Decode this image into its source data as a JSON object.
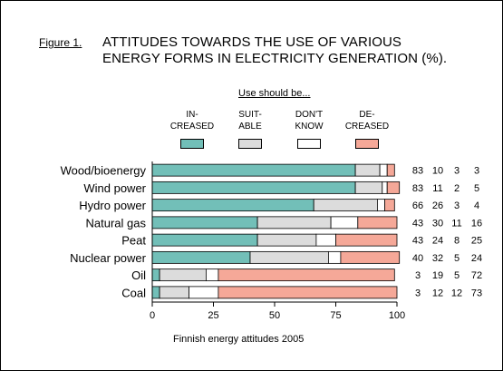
{
  "figure": {
    "label": "Figure 1.",
    "title_line1": "ATTITUDES TOWARDS THE USE OF VARIOUS",
    "title_line2": "ENERGY FORMS IN ELECTRICITY GENERATION (%)."
  },
  "legend": {
    "heading": "Use should be...",
    "items": [
      {
        "line1": "IN-",
        "line2": "CREASED",
        "color": "#72bfb8"
      },
      {
        "line1": "SUIT-",
        "line2": "ABLE",
        "color": "#dcdcdc"
      },
      {
        "line1": "DON'T",
        "line2": "KNOW",
        "color": "#ffffff"
      },
      {
        "line1": "DE-",
        "line2": "CREASED",
        "color": "#f5a898"
      }
    ]
  },
  "caption": "Finnish energy attitudes 2005",
  "chart_data": {
    "type": "bar",
    "orientation": "horizontal",
    "stacked": true,
    "categories": [
      "Wood/bioenergy",
      "Wind power",
      "Hydro power",
      "Natural gas",
      "Peat",
      "Nuclear power",
      "Oil",
      "Coal"
    ],
    "series": [
      {
        "name": "IN- CREASED",
        "color": "#72bfb8",
        "values": [
          83,
          83,
          66,
          43,
          43,
          40,
          3,
          3
        ]
      },
      {
        "name": "SUIT- ABLE",
        "color": "#dcdcdc",
        "values": [
          10,
          11,
          26,
          30,
          24,
          32,
          19,
          12
        ]
      },
      {
        "name": "DON'T KNOW",
        "color": "#ffffff",
        "values": [
          3,
          2,
          3,
          11,
          8,
          5,
          5,
          12
        ]
      },
      {
        "name": "DE- CREASED",
        "color": "#f5a898",
        "values": [
          3,
          5,
          4,
          16,
          25,
          24,
          72,
          73
        ]
      }
    ],
    "xlim": [
      0,
      100
    ],
    "xticks": [
      0,
      25,
      50,
      75,
      100
    ],
    "grid": false
  }
}
